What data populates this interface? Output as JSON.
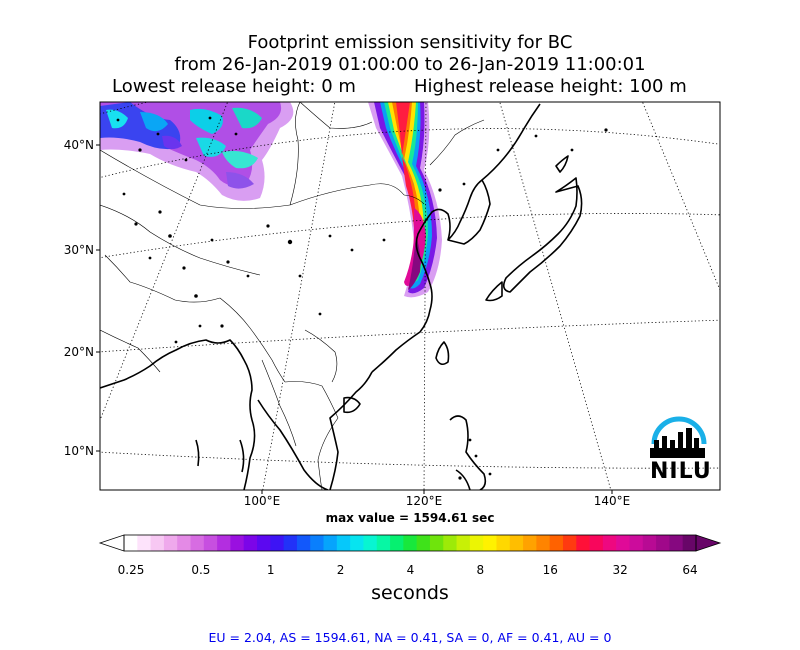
{
  "title": {
    "line1": "Footprint emission sensitivity for BC",
    "line2": "from 26-Jan-2019 01:00:00 to 26-Jan-2019 11:00:01",
    "lowest": "Lowest release height: 0 m",
    "highest": "Highest release height: 100 m"
  },
  "map": {
    "projection": "lambert-conformal",
    "graticule": "dotted",
    "lat_labels": [
      "40°N",
      "30°N",
      "20°N",
      "10°N"
    ],
    "lon_labels": [
      "100°E",
      "120°E",
      "140°E"
    ],
    "max_value": "max value = 1594.61 sec",
    "logo": "NILU",
    "logo_color": "#1ab0e8"
  },
  "colorbar": {
    "tick_labels": [
      "0.25",
      "0.5",
      "1",
      "2",
      "4",
      "8",
      "16",
      "32",
      "64"
    ],
    "unit": "seconds",
    "extend": "both",
    "colors": [
      "#ffffff",
      "#fde3fb",
      "#f7c8f3",
      "#efa9ec",
      "#e48ae6",
      "#d76ce2",
      "#c74fe0",
      "#b32ee0",
      "#9a10e0",
      "#7c05e8",
      "#5c08f0",
      "#3d14f5",
      "#2232f8",
      "#1258fb",
      "#0a7ffd",
      "#06a4fc",
      "#06c8fa",
      "#07e4f0",
      "#08f5d2",
      "#07f7a4",
      "#06f070",
      "#18e83c",
      "#3fe21a",
      "#6fe40c",
      "#9dea08",
      "#c8f006",
      "#ecf503",
      "#fff200",
      "#ffd800",
      "#ffbe00",
      "#ffa200",
      "#ff8400",
      "#ff6200",
      "#ff3a10",
      "#ff1038",
      "#f8065c",
      "#ee0880",
      "#e00a98",
      "#cc0c9c",
      "#b80a94",
      "#a0088a",
      "#860880",
      "#680668"
    ]
  },
  "regional_totals": "EU = 2.04,  AS = 1594.61,  NA = 0.41,  SA = 0,  AF = 0.41,  AU = 0"
}
